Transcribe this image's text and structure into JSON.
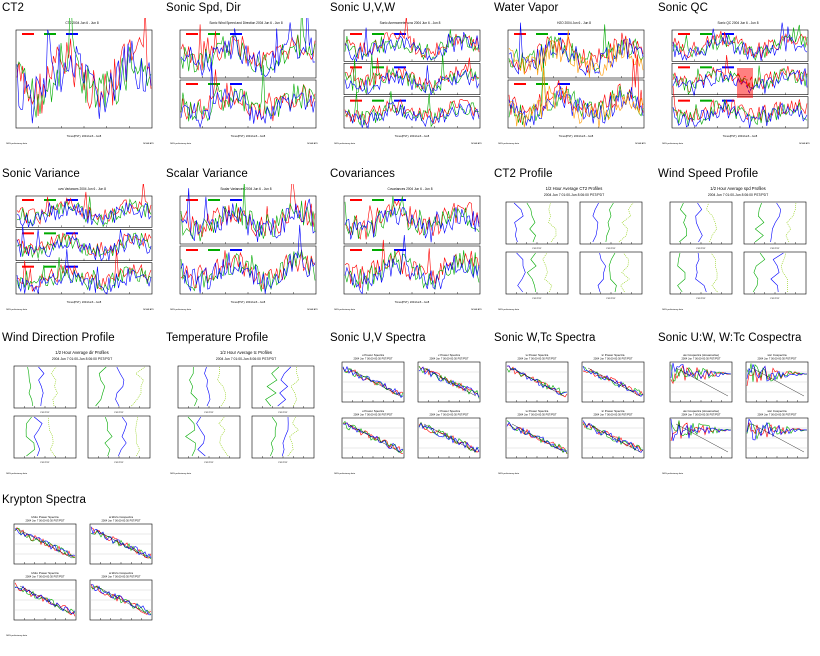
{
  "thumbnails": [
    {
      "id": "ct2",
      "title": "CT2",
      "kind": "ts1",
      "colors": [
        "#ff0000",
        "#00aa00",
        "#0000ff"
      ],
      "header": "CT2 2004 Jun 6 - Jun 8"
    },
    {
      "id": "sonic-spd-dir",
      "title": "Sonic Spd, Dir",
      "kind": "ts2",
      "colors": [
        "#ff0000",
        "#00aa00",
        "#0000ff"
      ],
      "header": "Sonic Wind Speed and Direction 2004 Jun 6 - Jun 8"
    },
    {
      "id": "sonic-uvw",
      "title": "Sonic U,V,W",
      "kind": "ts3",
      "colors": [
        "#ff0000",
        "#00aa00",
        "#0000ff"
      ],
      "header": "Sonic Anemometer uvw 2004 Jun 6 - Jun 8"
    },
    {
      "id": "water-vapor",
      "title": "Water Vapor",
      "kind": "ts2b",
      "colors": [
        "#ff0000",
        "#00aa00",
        "#0000ff",
        "#ff9900"
      ],
      "header": "H2O 2004 Jun 6 - Jun 8"
    },
    {
      "id": "sonic-qc",
      "title": "Sonic QC",
      "kind": "ts3q",
      "colors": [
        "#ff0000",
        "#00aa00",
        "#0000ff"
      ],
      "header": "Sonic QC 2004 Jun 6 - Jun 8"
    },
    {
      "id": "sonic-variance",
      "title": "Sonic Variance",
      "kind": "ts3",
      "colors": [
        "#ff0000",
        "#00aa00",
        "#0000ff"
      ],
      "header": "uvw Variances 2004 Jun 6 - Jun 8"
    },
    {
      "id": "scalar-variance",
      "title": "Scalar Variance",
      "kind": "ts2",
      "colors": [
        "#ff0000",
        "#00aa00",
        "#0000ff"
      ],
      "header": "Scalar Variances 2004 Jun 6 - Jun 8"
    },
    {
      "id": "covariances",
      "title": "Covariances",
      "kind": "ts2",
      "colors": [
        "#ff0000",
        "#00aa00",
        "#0000ff"
      ],
      "header": "Covariances 2004 Jun 6 - Jun 8"
    },
    {
      "id": "ct2-profile",
      "title": "CT2 Profile",
      "kind": "prof",
      "colors": [
        "#0000ff",
        "#00aa00",
        "#88cc00"
      ],
      "header": "1/2 Hour Average CT2 Profiles",
      "sub": "2004 Jun 7 01:00-Jun 8 06:00 PST/PDT"
    },
    {
      "id": "wind-speed-profile",
      "title": "Wind Speed Profile",
      "kind": "prof",
      "colors": [
        "#00aa00",
        "#0000ff",
        "#88cc00"
      ],
      "header": "1/2 Hour Average spd Profiles",
      "sub": "2004 Jun 7 01:00-Jun 8 06:00 PST/PDT"
    },
    {
      "id": "wind-direction-profile",
      "title": "Wind Direction Profile",
      "kind": "prof",
      "colors": [
        "#00aa00",
        "#0000ff",
        "#88cc00"
      ],
      "header": "1/2 Hour Average dir Profiles",
      "sub": "2004 Jun 7 01:00-Jun 8 06:00 PST/PDT"
    },
    {
      "id": "temperature-profile",
      "title": "Temperature Profile",
      "kind": "prof",
      "colors": [
        "#00aa00",
        "#0000ff",
        "#88cc00"
      ],
      "header": "1/2 Hour Average tc Profiles",
      "sub": "2004 Jun 7 01:00-Jun 8 06:00 PST/PDT"
    },
    {
      "id": "sonic-uv-spectra",
      "title": "Sonic U,V Spectra",
      "kind": "spec",
      "colors": [
        "#ff0000",
        "#00aa00",
        "#0000ff"
      ],
      "header": "u Power Spectra",
      "header2": "v Power Spectra",
      "sub": "2004 Jun 7 00:00-00:30 PST/PDT"
    },
    {
      "id": "sonic-wtc-spectra",
      "title": "Sonic W,Tc Spectra",
      "kind": "spec",
      "colors": [
        "#ff0000",
        "#00aa00",
        "#0000ff"
      ],
      "header": "w Power Spectra",
      "header2": "tc Power Spectra",
      "sub": "2004 Jun 7 00:00-00:30 PST/PDT"
    },
    {
      "id": "sonic-uw-wtc-cospectra",
      "title": "Sonic U:W, W:Tc Cospectra",
      "kind": "cosp",
      "colors": [
        "#ff0000",
        "#00aa00",
        "#0000ff"
      ],
      "header": "uw Cospectra (streamwise)",
      "header2": "wtc Cospectra",
      "sub": "2004 Jun 7 00:00-00:30 PST/PDT"
    },
    {
      "id": "krypton-spectra",
      "title": "Krypton Spectra",
      "kind": "kspec",
      "colors": [
        "#ff0000",
        "#00aa00",
        "#0000ff"
      ],
      "header": "kh2o Power Spectra",
      "header2": "w:kh2o Cospectra",
      "sub": "2004 Jun 7 00:00-00:30 PST/PDT"
    }
  ]
}
